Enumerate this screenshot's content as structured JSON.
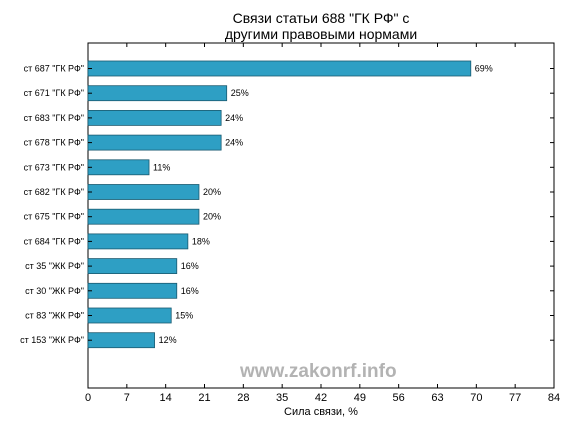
{
  "chart_data": {
    "type": "bar",
    "orientation": "horizontal",
    "title_line1": "Связи статьи 688 \"ГК РФ\" с",
    "title_line2": "другими правовыми нормами",
    "xlabel": "Сила связи, %",
    "ylabel": "",
    "categories": [
      "ст 687 \"ГК РФ\"",
      "ст 671 \"ГК РФ\"",
      "ст 683 \"ГК РФ\"",
      "ст 678 \"ГК РФ\"",
      "ст 673 \"ГК РФ\"",
      "ст 682 \"ГК РФ\"",
      "ст 675 \"ГК РФ\"",
      "ст 684 \"ГК РФ\"",
      "ст 35 \"ЖК РФ\"",
      "ст 30 \"ЖК РФ\"",
      "ст 83 \"ЖК РФ\"",
      "ст 153 \"ЖК РФ\""
    ],
    "values": [
      69,
      25,
      24,
      24,
      11,
      20,
      20,
      18,
      16,
      16,
      15,
      12
    ],
    "value_labels": [
      "69%",
      "25%",
      "24%",
      "24%",
      "11%",
      "20%",
      "20%",
      "18%",
      "16%",
      "16%",
      "15%",
      "12%"
    ],
    "xlim": [
      0,
      84
    ],
    "xticks": [
      0,
      7,
      14,
      21,
      28,
      35,
      42,
      49,
      56,
      63,
      70,
      77,
      84
    ],
    "bar_color": "#2e9fc4",
    "bar_edge_color": "#1a5a70",
    "grid": false,
    "watermark": "www.zakonrf.info"
  }
}
